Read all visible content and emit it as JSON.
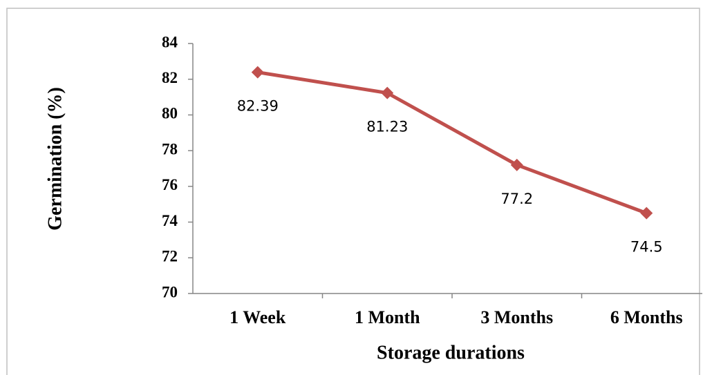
{
  "chart_data": {
    "type": "line",
    "categories": [
      "1 Week",
      "1 Month",
      "3 Months",
      "6 Months"
    ],
    "series": [
      {
        "name": "Germination",
        "color": "#c0504d",
        "values": [
          82.39,
          81.23,
          77.2,
          74.5
        ]
      }
    ],
    "x_label": "Storage durations",
    "y_label": "Germination (%)",
    "ylim": [
      70,
      84
    ],
    "yticks": [
      70,
      72,
      74,
      76,
      78,
      80,
      82,
      84
    ]
  }
}
